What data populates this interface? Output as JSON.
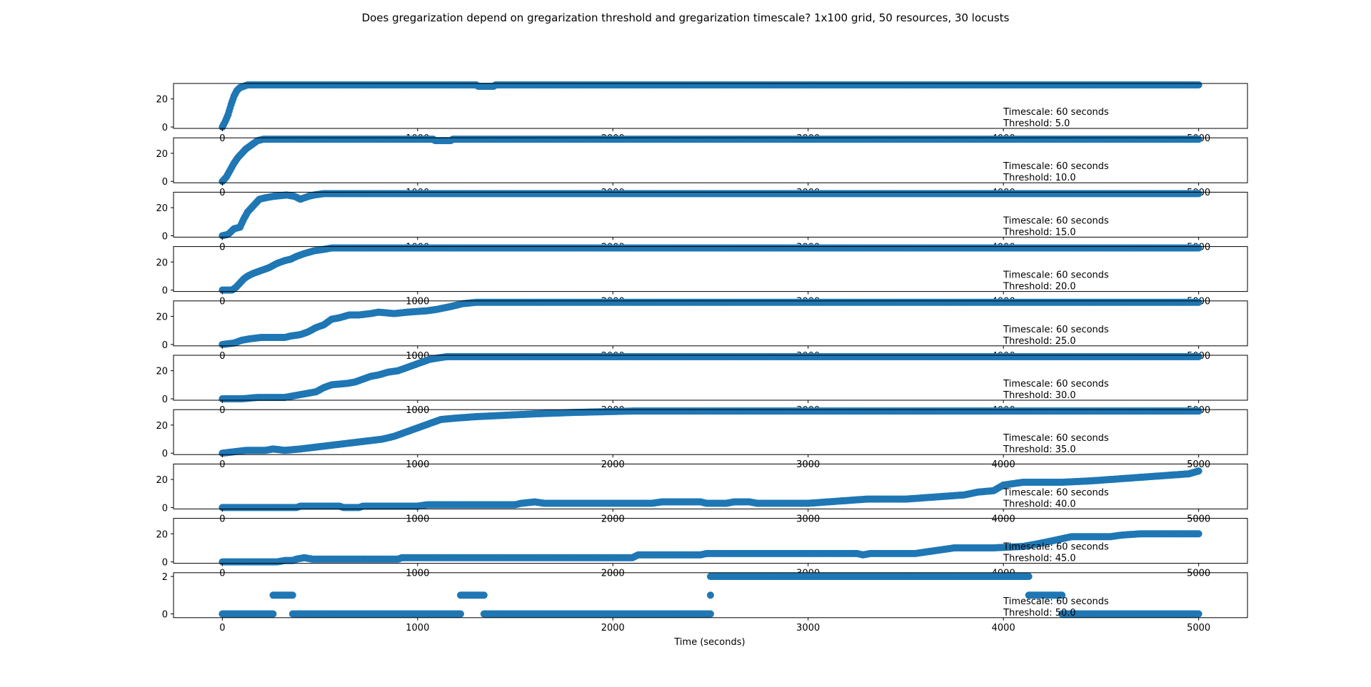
{
  "figure": {
    "title": "Does gregarization depend on gregarization threshold and gregarization timescale? 1x100 grid, 50 resources, 30 locusts",
    "xlabel": "Time (seconds)",
    "marker_color": "#1f77b4"
  },
  "chart_data": [
    {
      "type": "scatter",
      "annotation": [
        "Timescale: 60 seconds",
        "Threshold: 5.0"
      ],
      "xlim": [
        -250,
        5250
      ],
      "ylim": [
        -1,
        31
      ],
      "xticks": [
        "0",
        "1000",
        "2000",
        "3000",
        "4000",
        "5000"
      ],
      "yticks": [
        "0",
        "20"
      ],
      "ytick_values": [
        0,
        20
      ],
      "points": [
        [
          0,
          0
        ],
        [
          15,
          4
        ],
        [
          30,
          9
        ],
        [
          45,
          16
        ],
        [
          60,
          22
        ],
        [
          75,
          26
        ],
        [
          90,
          28
        ],
        [
          110,
          29
        ],
        [
          130,
          30
        ],
        [
          1300,
          30
        ],
        [
          1310,
          29
        ],
        [
          1390,
          29
        ],
        [
          1400,
          30
        ],
        [
          5000,
          30
        ]
      ]
    },
    {
      "type": "scatter",
      "annotation": [
        "Timescale: 60 seconds",
        "Threshold: 10.0"
      ],
      "xlim": [
        -250,
        5250
      ],
      "ylim": [
        -1,
        31
      ],
      "xticks": [
        "0",
        "1000",
        "2000",
        "3000",
        "4000",
        "5000"
      ],
      "yticks": [
        "0",
        "20"
      ],
      "ytick_values": [
        0,
        20
      ],
      "points": [
        [
          0,
          0
        ],
        [
          20,
          3
        ],
        [
          40,
          8
        ],
        [
          60,
          13
        ],
        [
          80,
          17
        ],
        [
          100,
          20
        ],
        [
          120,
          23
        ],
        [
          140,
          25
        ],
        [
          160,
          27
        ],
        [
          180,
          29
        ],
        [
          210,
          30
        ],
        [
          1080,
          30
        ],
        [
          1090,
          29
        ],
        [
          1170,
          29
        ],
        [
          1180,
          30
        ],
        [
          5000,
          30
        ]
      ]
    },
    {
      "type": "scatter",
      "annotation": [
        "Timescale: 60 seconds",
        "Threshold: 15.0"
      ],
      "xlim": [
        -250,
        5250
      ],
      "ylim": [
        -1,
        31
      ],
      "xticks": [
        "0",
        "1000",
        "2000",
        "3000",
        "4000",
        "5000"
      ],
      "yticks": [
        "0",
        "20"
      ],
      "ytick_values": [
        0,
        20
      ],
      "points": [
        [
          0,
          0
        ],
        [
          30,
          1
        ],
        [
          60,
          5
        ],
        [
          90,
          6
        ],
        [
          110,
          12
        ],
        [
          130,
          17
        ],
        [
          150,
          20
        ],
        [
          170,
          23
        ],
        [
          190,
          26
        ],
        [
          220,
          27
        ],
        [
          260,
          28
        ],
        [
          330,
          29
        ],
        [
          370,
          28
        ],
        [
          400,
          26
        ],
        [
          440,
          28
        ],
        [
          470,
          29
        ],
        [
          520,
          30
        ],
        [
          5000,
          30
        ]
      ]
    },
    {
      "type": "scatter",
      "annotation": [
        "Timescale: 60 seconds",
        "Threshold: 20.0"
      ],
      "xlim": [
        -250,
        5250
      ],
      "ylim": [
        -1,
        31
      ],
      "xticks": [
        "0",
        "1000",
        "2000",
        "3000",
        "4000",
        "5000"
      ],
      "yticks": [
        "0",
        "20"
      ],
      "ytick_values": [
        0,
        20
      ],
      "points": [
        [
          0,
          0
        ],
        [
          50,
          0
        ],
        [
          70,
          2
        ],
        [
          90,
          5
        ],
        [
          110,
          8
        ],
        [
          130,
          10
        ],
        [
          160,
          12
        ],
        [
          200,
          14
        ],
        [
          240,
          16
        ],
        [
          280,
          19
        ],
        [
          320,
          21
        ],
        [
          350,
          22
        ],
        [
          380,
          24
        ],
        [
          420,
          26
        ],
        [
          470,
          28
        ],
        [
          520,
          29
        ],
        [
          560,
          30
        ],
        [
          5000,
          30
        ]
      ]
    },
    {
      "type": "scatter",
      "annotation": [
        "Timescale: 60 seconds",
        "Threshold: 25.0"
      ],
      "xlim": [
        -250,
        5250
      ],
      "ylim": [
        -1,
        31
      ],
      "xticks": [
        "0",
        "1000",
        "2000",
        "3000",
        "4000",
        "5000"
      ],
      "yticks": [
        "0",
        "20"
      ],
      "ytick_values": [
        0,
        20
      ],
      "points": [
        [
          0,
          0
        ],
        [
          60,
          1
        ],
        [
          100,
          3
        ],
        [
          140,
          4
        ],
        [
          200,
          5
        ],
        [
          320,
          5
        ],
        [
          350,
          6
        ],
        [
          400,
          7
        ],
        [
          440,
          9
        ],
        [
          480,
          12
        ],
        [
          520,
          14
        ],
        [
          560,
          18
        ],
        [
          600,
          19
        ],
        [
          650,
          21
        ],
        [
          700,
          21
        ],
        [
          760,
          22
        ],
        [
          800,
          23
        ],
        [
          880,
          22
        ],
        [
          950,
          23
        ],
        [
          1050,
          24
        ],
        [
          1100,
          25
        ],
        [
          1170,
          27
        ],
        [
          1230,
          29
        ],
        [
          1300,
          30
        ],
        [
          5000,
          30
        ]
      ]
    },
    {
      "type": "scatter",
      "annotation": [
        "Timescale: 60 seconds",
        "Threshold: 30.0"
      ],
      "xlim": [
        -250,
        5250
      ],
      "ylim": [
        -1,
        31
      ],
      "xticks": [
        "0",
        "1000",
        "2000",
        "3000",
        "4000",
        "5000"
      ],
      "yticks": [
        "0",
        "20"
      ],
      "ytick_values": [
        0,
        20
      ],
      "points": [
        [
          0,
          0
        ],
        [
          100,
          0
        ],
        [
          180,
          1
        ],
        [
          320,
          1
        ],
        [
          360,
          2
        ],
        [
          400,
          3
        ],
        [
          440,
          4
        ],
        [
          480,
          5
        ],
        [
          520,
          8
        ],
        [
          560,
          10
        ],
        [
          640,
          11
        ],
        [
          680,
          12
        ],
        [
          720,
          14
        ],
        [
          760,
          16
        ],
        [
          800,
          17
        ],
        [
          850,
          19
        ],
        [
          900,
          20
        ],
        [
          940,
          22
        ],
        [
          980,
          24
        ],
        [
          1020,
          26
        ],
        [
          1060,
          28
        ],
        [
          1100,
          29
        ],
        [
          1150,
          30
        ],
        [
          5000,
          30
        ]
      ]
    },
    {
      "type": "scatter",
      "annotation": [
        "Timescale: 60 seconds",
        "Threshold: 35.0"
      ],
      "xlim": [
        -250,
        5250
      ],
      "ylim": [
        -1,
        31
      ],
      "xticks": [
        "0",
        "1000",
        "2000",
        "3000",
        "4000",
        "5000"
      ],
      "yticks": [
        "0",
        "20"
      ],
      "ytick_values": [
        0,
        20
      ],
      "points": [
        [
          0,
          0
        ],
        [
          60,
          1
        ],
        [
          120,
          2
        ],
        [
          220,
          2
        ],
        [
          260,
          3
        ],
        [
          320,
          2
        ],
        [
          400,
          3
        ],
        [
          460,
          4
        ],
        [
          520,
          5
        ],
        [
          580,
          6
        ],
        [
          640,
          7
        ],
        [
          700,
          8
        ],
        [
          760,
          9
        ],
        [
          820,
          10
        ],
        [
          880,
          12
        ],
        [
          920,
          14
        ],
        [
          960,
          16
        ],
        [
          1000,
          18
        ],
        [
          1040,
          20
        ],
        [
          1080,
          22
        ],
        [
          1120,
          24
        ],
        [
          1200,
          25
        ],
        [
          1300,
          26
        ],
        [
          1450,
          27
        ],
        [
          1600,
          28
        ],
        [
          1800,
          29
        ],
        [
          2100,
          30
        ],
        [
          5000,
          30
        ]
      ]
    },
    {
      "type": "scatter",
      "annotation": [
        "Timescale: 60 seconds",
        "Threshold: 40.0"
      ],
      "xlim": [
        -250,
        5250
      ],
      "ylim": [
        -1,
        31
      ],
      "xticks": [
        "0",
        "1000",
        "2000",
        "3000",
        "4000",
        "5000"
      ],
      "yticks": [
        "0",
        "20"
      ],
      "ytick_values": [
        0,
        20
      ],
      "points": [
        [
          0,
          0
        ],
        [
          380,
          0
        ],
        [
          400,
          1
        ],
        [
          600,
          1
        ],
        [
          620,
          0
        ],
        [
          700,
          0
        ],
        [
          720,
          1
        ],
        [
          1000,
          1
        ],
        [
          1050,
          2
        ],
        [
          1500,
          2
        ],
        [
          1530,
          3
        ],
        [
          1600,
          4
        ],
        [
          1650,
          3
        ],
        [
          2200,
          3
        ],
        [
          2250,
          4
        ],
        [
          2450,
          4
        ],
        [
          2480,
          3
        ],
        [
          2580,
          3
        ],
        [
          2620,
          4
        ],
        [
          2700,
          4
        ],
        [
          2740,
          3
        ],
        [
          3000,
          3
        ],
        [
          3100,
          4
        ],
        [
          3200,
          5
        ],
        [
          3300,
          6
        ],
        [
          3500,
          6
        ],
        [
          3600,
          7
        ],
        [
          3700,
          8
        ],
        [
          3800,
          9
        ],
        [
          3870,
          11
        ],
        [
          3950,
          12
        ],
        [
          4000,
          16
        ],
        [
          4100,
          18
        ],
        [
          4300,
          18
        ],
        [
          4450,
          19
        ],
        [
          4550,
          20
        ],
        [
          4650,
          21
        ],
        [
          4750,
          22
        ],
        [
          4850,
          23
        ],
        [
          4950,
          24
        ],
        [
          5000,
          26
        ]
      ]
    },
    {
      "type": "scatter",
      "annotation": [
        "Timescale: 60 seconds",
        "Threshold: 45.0"
      ],
      "xlim": [
        -250,
        5250
      ],
      "ylim": [
        -1,
        31
      ],
      "xticks": [
        "0",
        "1000",
        "2000",
        "3000",
        "4000",
        "5000"
      ],
      "yticks": [
        "0",
        "20"
      ],
      "ytick_values": [
        0,
        20
      ],
      "points": [
        [
          0,
          0
        ],
        [
          280,
          0
        ],
        [
          320,
          1
        ],
        [
          360,
          1
        ],
        [
          380,
          2
        ],
        [
          420,
          3
        ],
        [
          460,
          2
        ],
        [
          900,
          2
        ],
        [
          920,
          3
        ],
        [
          2100,
          3
        ],
        [
          2130,
          5
        ],
        [
          2450,
          5
        ],
        [
          2480,
          6
        ],
        [
          3250,
          6
        ],
        [
          3280,
          5
        ],
        [
          3320,
          6
        ],
        [
          3550,
          6
        ],
        [
          3600,
          7
        ],
        [
          3700,
          9
        ],
        [
          3750,
          10
        ],
        [
          3950,
          10
        ],
        [
          4100,
          11
        ],
        [
          4180,
          13
        ],
        [
          4250,
          15
        ],
        [
          4350,
          18
        ],
        [
          4550,
          18
        ],
        [
          4600,
          19
        ],
        [
          4700,
          20
        ],
        [
          5000,
          20
        ]
      ]
    },
    {
      "type": "scatter",
      "annotation": [
        "Timescale: 60 seconds",
        "Threshold: 50.0"
      ],
      "xlim": [
        -250,
        5250
      ],
      "ylim": [
        -0.2,
        2.2
      ],
      "xticks": [
        "0",
        "1000",
        "2000",
        "3000",
        "4000",
        "5000"
      ],
      "yticks": [
        "0",
        "2"
      ],
      "ytick_values": [
        0,
        2
      ],
      "points": [
        [
          0,
          0
        ],
        [
          260,
          0
        ],
        [
          260,
          1
        ],
        [
          360,
          1
        ],
        [
          360,
          0
        ],
        [
          1220,
          0
        ],
        [
          1220,
          1
        ],
        [
          1340,
          1
        ],
        [
          1340,
          0
        ],
        [
          2500,
          0
        ],
        [
          2500,
          1
        ],
        [
          2500,
          2
        ],
        [
          4130,
          2
        ],
        [
          4130,
          1
        ],
        [
          4300,
          1
        ],
        [
          4300,
          0
        ],
        [
          5000,
          0
        ]
      ]
    }
  ]
}
